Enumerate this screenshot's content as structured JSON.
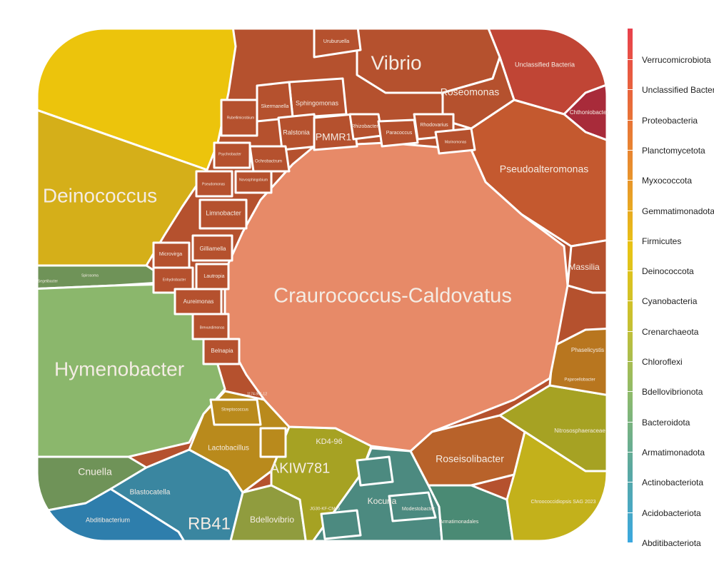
{
  "colors": {
    "proteo": "#b5512e",
    "proteo_light": "#e78a68",
    "deino_bright": "#ecc40c",
    "deino": "#d5af19",
    "bacteroidota": "#8bb76c",
    "bacteroidota_dark": "#6f9358",
    "unclassified": "#c04535",
    "verruco": "#a82b3a",
    "firmicutes": "#b98a1c",
    "chloroflexi": "#a6a223",
    "crenarchaeota": "#c3b11b",
    "bdellovibrio": "#909c3e",
    "armatimonadota": "#4a8a74",
    "actino": "#4c8a80",
    "acido": "#3a86a0",
    "abditi": "#2e7eac",
    "gemmati": "#b8622a",
    "myxo": "#c4652a"
  },
  "legend": [
    "Verrucomicrobiota",
    "Unclassified Bacteria",
    "Proteobacteria",
    "Planctomycetota",
    "Myxococcota",
    "Gemmatimonadota",
    "Firmicutes",
    "Deinococcota",
    "Cyanobacteria",
    "Crenarchaeota",
    "Chloroflexi",
    "Bdellovibrionota",
    "Bacteroidota",
    "Armatimonadota",
    "Actinobacteriota",
    "Acidobacteriota",
    "Abditibacteriota"
  ],
  "labels": {
    "craurococcus": "Craurococcus-Caldovatus",
    "deinococcus": "Deinococcus",
    "hymenobacter": "Hymenobacter",
    "vibrio": "Vibrio",
    "pseudoalteromonas": "Pseudoalteromonas",
    "roseomonas": "Roseomonas",
    "unclassified_bacteria": "Unclassified Bacteria",
    "chthoniobacter": "Chthoniobacter",
    "massilia": "Massilia",
    "phaselicystis": "Phaselicystis",
    "pajaroellobacter": "Pajaroellobacter",
    "nitrososphaeraceae": "Nitrososphaeraceae",
    "chroococcidiopsis": "Chroococcidiopsis SAG 2023",
    "roseisolibacter": "Roseisolibacter",
    "kocuria": "Kocuria",
    "modestobacter": "Modestobacter",
    "armatimonadales": "Armatimonadales",
    "akiw781": "AKIW781",
    "kd4_96": "KD4-96",
    "jg30": "JG30-KF-CM45",
    "bdellovibrio": "Bdellovibrio",
    "rb41": "RB41",
    "blastocatella": "Blastocatella",
    "abditibacterium": "Abditibacterium",
    "cnuella": "Cnuella",
    "lactobacillus": "Lactobacillus",
    "streptococcus": "Streptococcus",
    "sphingomonas": "Sphingomonas",
    "skermanella": "Skermanella",
    "ralstonia": "Ralstonia",
    "pmmr1": "PMMR1",
    "rhizobacter": "Rhizobacter",
    "paracoccus": "Paracoccus",
    "rhodovarius": "Rhodovarius",
    "marinomonas": "Marinomonas",
    "uruburuella": "Uruburuella",
    "rubellimicrobium": "Rubellimicrobium",
    "ochrobactrum": "Ochrobactrum",
    "psychrobacter": "Psychrobacter",
    "novosphingobium": "Novosphingobium",
    "pseudomonas": "Pseudomonas",
    "limnobacter": "Limnobacter",
    "gilliamella": "Gilliamella",
    "microvirga": "Microvirga",
    "enhydrobacter": "Enhydrobacter",
    "lautropia": "Lautropia",
    "aureimonas": "Aureimonas",
    "brevundimonas": "Brevundimonas",
    "belnapia": "Belnapia",
    "h174": "1174-901-12",
    "spirosoma": "Spirosoma",
    "segetibacter": "Segetibacter"
  }
}
